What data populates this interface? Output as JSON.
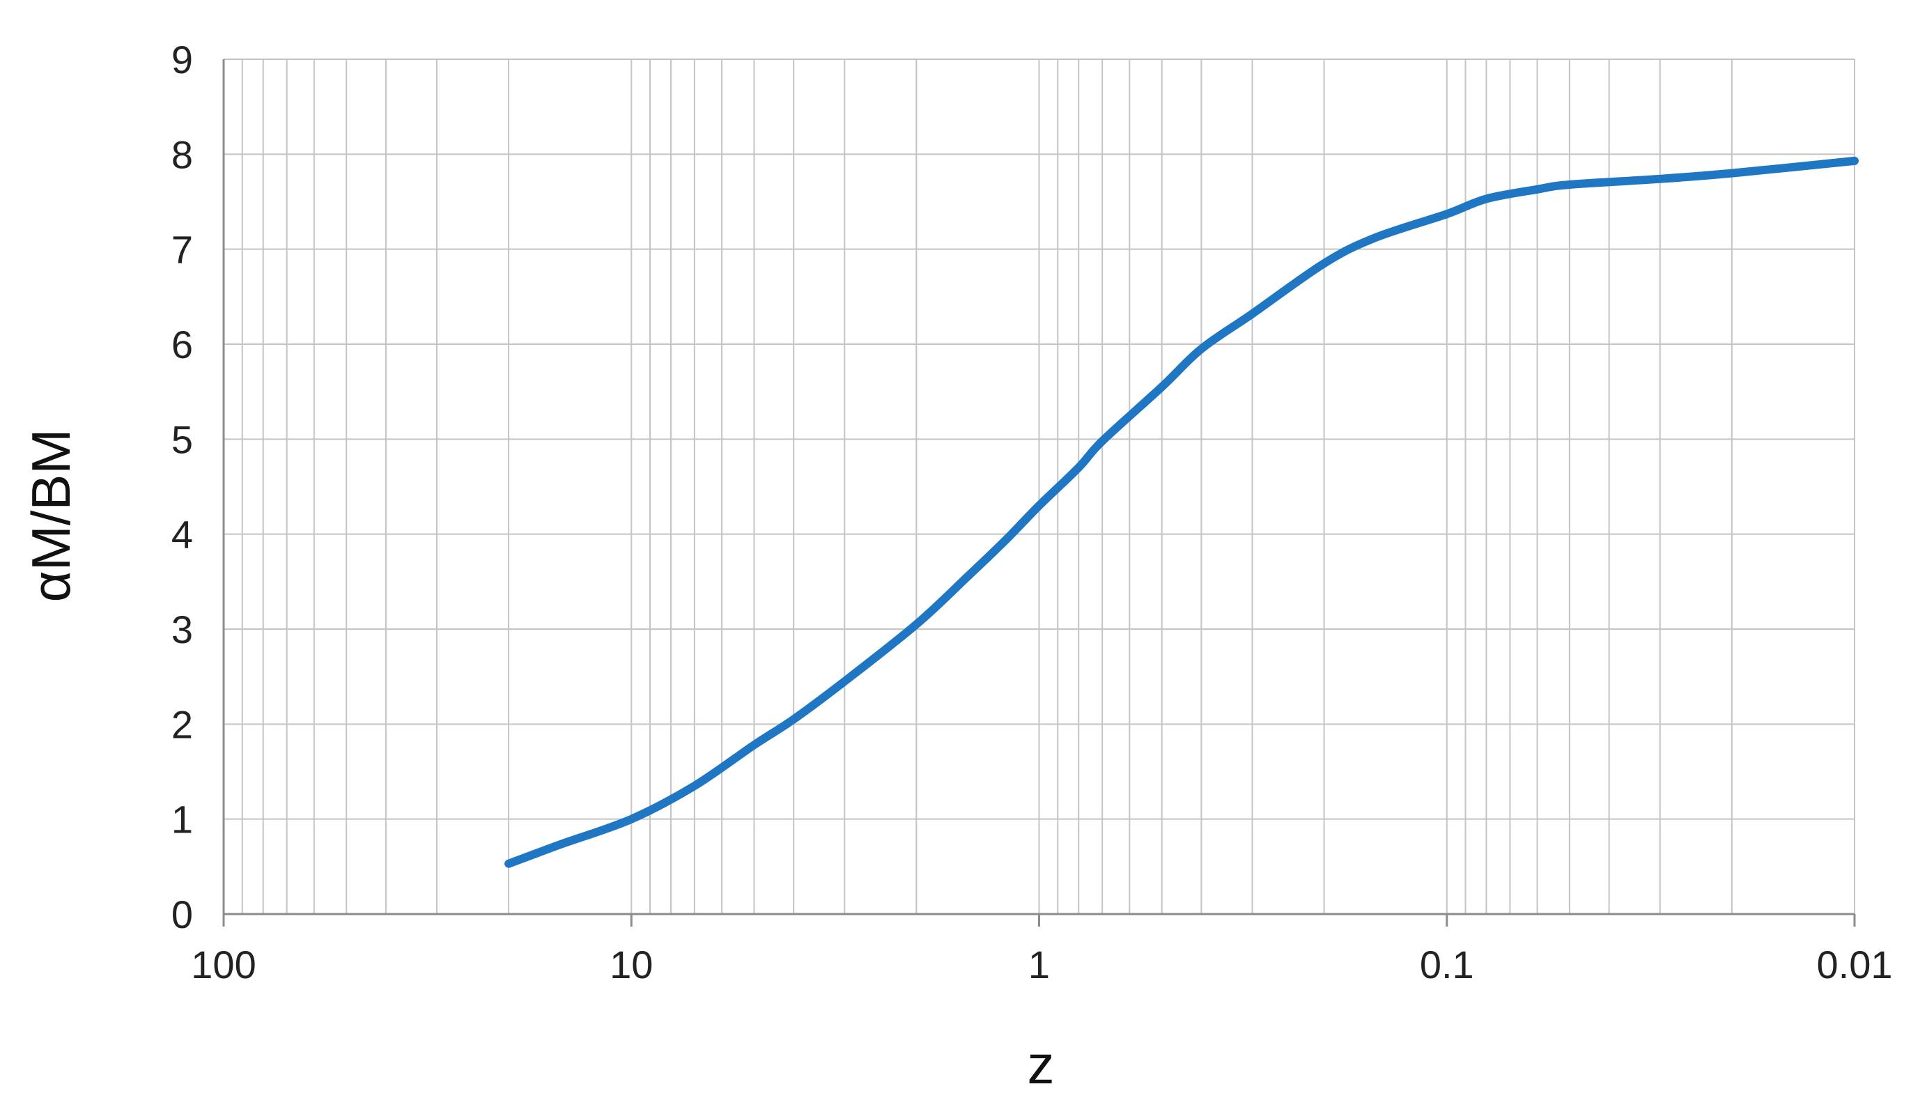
{
  "chart_data": {
    "type": "line",
    "title": "",
    "xlabel": "z",
    "ylabel": "αM/BM",
    "x_scale": "log",
    "x_direction": "reversed",
    "xlim": [
      100,
      0.01
    ],
    "ylim": [
      0,
      9
    ],
    "grid": true,
    "legend": "none",
    "x_ticks": [
      {
        "value": 100,
        "label": "100"
      },
      {
        "value": 10,
        "label": "10"
      },
      {
        "value": 1,
        "label": "1"
      },
      {
        "value": 0.1,
        "label": "0.1"
      },
      {
        "value": 0.01,
        "label": "0.01"
      }
    ],
    "y_ticks": [
      {
        "value": 0,
        "label": "0"
      },
      {
        "value": 1,
        "label": "1"
      },
      {
        "value": 2,
        "label": "2"
      },
      {
        "value": 3,
        "label": "3"
      },
      {
        "value": 4,
        "label": "4"
      },
      {
        "value": 5,
        "label": "5"
      },
      {
        "value": 6,
        "label": "6"
      },
      {
        "value": 7,
        "label": "7"
      },
      {
        "value": 8,
        "label": "8"
      },
      {
        "value": 9,
        "label": "9"
      }
    ],
    "series": [
      {
        "color": "#1f77c4",
        "x": [
          20,
          15,
          10,
          7,
          5,
          4,
          3,
          2,
          1.5,
          1.2,
          1,
          0.8,
          0.7,
          0.5,
          0.4,
          0.3,
          0.2,
          0.15,
          0.1,
          0.08,
          0.06,
          0.05,
          0.03,
          0.02,
          0.01
        ],
        "values": [
          0.53,
          0.73,
          1.0,
          1.35,
          1.78,
          2.05,
          2.45,
          3.05,
          3.55,
          3.95,
          4.3,
          4.7,
          4.98,
          5.55,
          5.95,
          6.32,
          6.85,
          7.12,
          7.37,
          7.53,
          7.63,
          7.68,
          7.74,
          7.8,
          7.93
        ]
      }
    ]
  },
  "colors": {
    "grid": "#c4c4c4",
    "axis": "#8c8c8c",
    "line": "#1f77c4"
  }
}
